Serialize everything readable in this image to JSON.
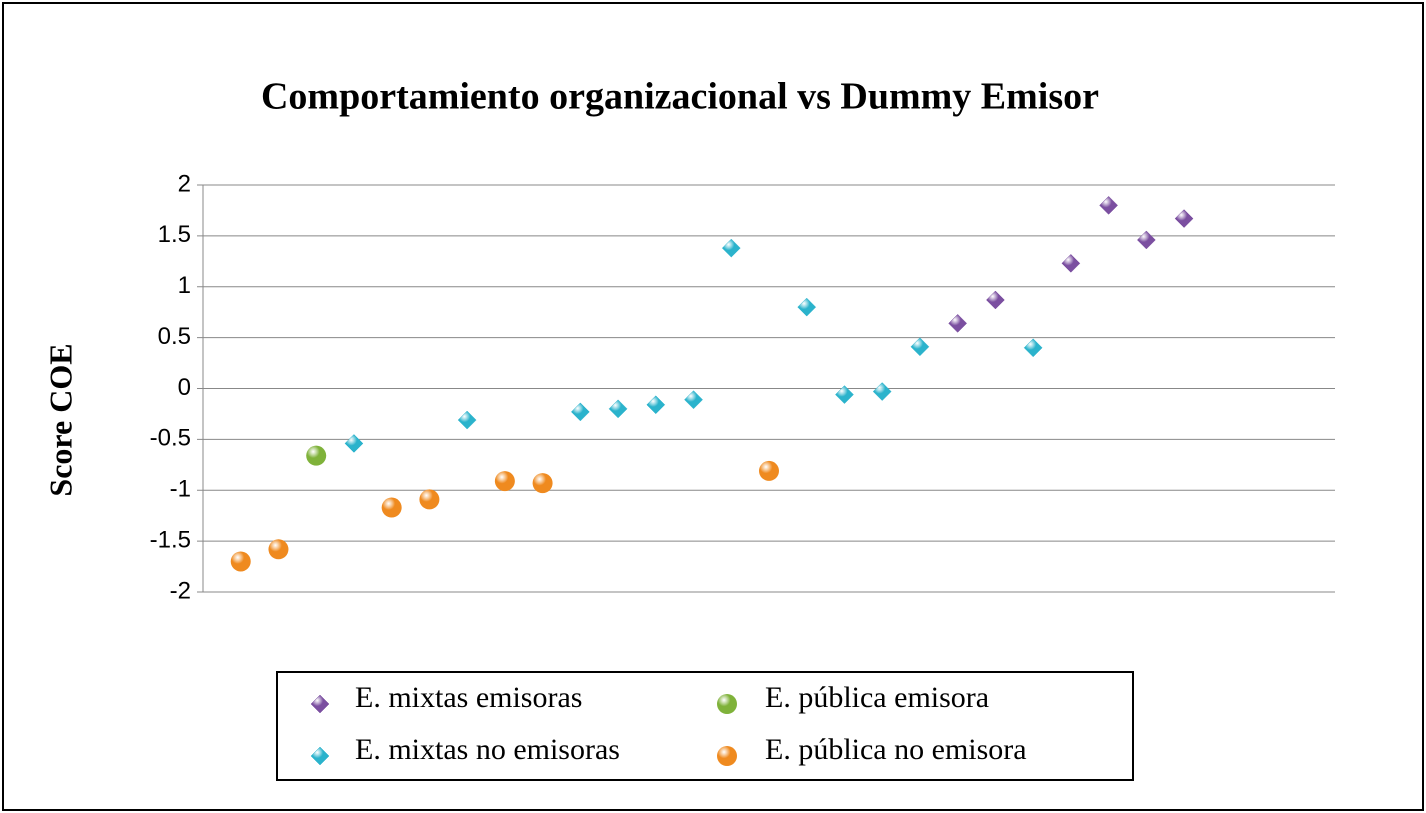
{
  "chart_data": {
    "type": "scatter",
    "title": "Comportamiento organizacional vs Dummy  Emisor",
    "y_label": "Score COE",
    "xlim": [
      0,
      30
    ],
    "ylim": [
      -2,
      2
    ],
    "yticks": [
      -2,
      -1.5,
      -1,
      -0.5,
      0,
      0.5,
      1,
      1.5,
      2
    ],
    "grid": true,
    "series": [
      {
        "name": "E. mixtas emisoras",
        "color": "#7b4fa0",
        "marker": "diamond",
        "x": [
          20,
          21,
          23,
          24,
          25,
          26
        ],
        "values": [
          0.64,
          0.87,
          1.23,
          1.8,
          1.46,
          1.67
        ]
      },
      {
        "name": "E. pública emisora",
        "color": "#7fb23a",
        "marker": "circle",
        "x": [
          3
        ],
        "values": [
          -0.66
        ]
      },
      {
        "name": "E. mixtas no emisoras",
        "color": "#2bb3cc",
        "marker": "diamond",
        "x": [
          4,
          7,
          10,
          11,
          12,
          13,
          14,
          16,
          17,
          18,
          19,
          22
        ],
        "values": [
          -0.54,
          -0.31,
          -0.23,
          -0.2,
          -0.16,
          -0.11,
          1.38,
          0.8,
          -0.06,
          -0.03,
          0.41,
          0.4
        ]
      },
      {
        "name": "E. pública no emisora",
        "color": "#ef8a1f",
        "marker": "circle",
        "x": [
          1,
          2,
          5,
          6,
          8,
          9,
          15
        ],
        "values": [
          -1.7,
          -1.58,
          -1.17,
          -1.09,
          -0.91,
          -0.93,
          -0.81
        ]
      }
    ]
  }
}
